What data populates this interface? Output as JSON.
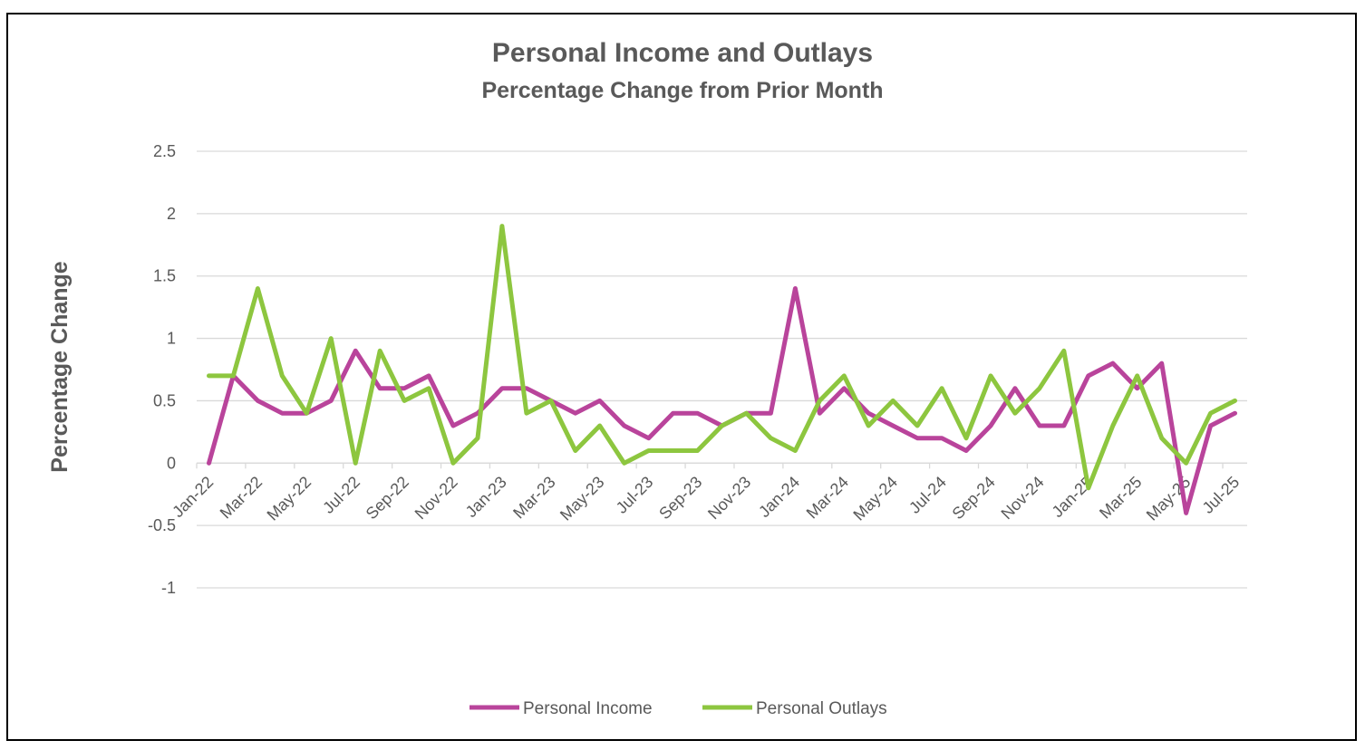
{
  "chart_data": {
    "type": "line",
    "title": "Personal Income and Outlays",
    "subtitle": "Percentage Change from Prior Month",
    "ylabel": "Percentage Change",
    "xlabel": "",
    "ylim": [
      -1,
      2.5
    ],
    "yticks": [
      "2.5",
      "2",
      "1.5",
      "1",
      "0.5",
      "0",
      "-0.5",
      "-1"
    ],
    "ytick_values": [
      2.5,
      2,
      1.5,
      1,
      0.5,
      0,
      -0.5,
      -1
    ],
    "grid": true,
    "legend_position": "bottom",
    "x": [
      "Jan-22",
      "Feb-22",
      "Mar-22",
      "Apr-22",
      "May-22",
      "Jun-22",
      "Jul-22",
      "Aug-22",
      "Sep-22",
      "Oct-22",
      "Nov-22",
      "Dec-22",
      "Jan-23",
      "Feb-23",
      "Mar-23",
      "Apr-23",
      "May-23",
      "Jun-23",
      "Jul-23",
      "Aug-23",
      "Sep-23",
      "Oct-23",
      "Nov-23",
      "Dec-23",
      "Jan-24",
      "Feb-24",
      "Mar-24",
      "Apr-24",
      "May-24",
      "Jun-24",
      "Jul-24",
      "Aug-24",
      "Sep-24",
      "Oct-24",
      "Nov-24",
      "Dec-24",
      "Jan-25",
      "Feb-25",
      "Mar-25",
      "Apr-25",
      "May-25",
      "Jun-25",
      "Jul-25"
    ],
    "xtick_labels": [
      "Jan-22",
      "Mar-22",
      "May-22",
      "Jul-22",
      "Sep-22",
      "Nov-22",
      "Jan-23",
      "Mar-23",
      "May-23",
      "Jul-23",
      "Sep-23",
      "Nov-23",
      "Jan-24",
      "Mar-24",
      "May-24",
      "Jul-24",
      "Sep-24",
      "Nov-24",
      "Jan-25",
      "Mar-25",
      "May-25",
      "Jul-25"
    ],
    "series": [
      {
        "name": "Personal Income",
        "color": "#B9449B",
        "values": [
          0,
          0.7,
          0.5,
          0.4,
          0.4,
          0.5,
          0.9,
          0.6,
          0.6,
          0.7,
          0.3,
          0.4,
          0.6,
          0.6,
          0.5,
          0.4,
          0.5,
          0.3,
          0.2,
          0.4,
          0.4,
          0.3,
          0.4,
          0.4,
          1.4,
          0.4,
          0.6,
          0.4,
          0.3,
          0.2,
          0.2,
          0.1,
          0.3,
          0.6,
          0.3,
          0.3,
          0.7,
          0.8,
          0.6,
          0.8,
          -0.4,
          0.3,
          0.4
        ]
      },
      {
        "name": "Personal Outlays",
        "color": "#8DC63F",
        "values": [
          0.7,
          0.7,
          1.4,
          0.7,
          0.4,
          1.0,
          0,
          0.9,
          0.5,
          0.6,
          0,
          0.2,
          1.9,
          0.4,
          0.5,
          0.1,
          0.3,
          0,
          0.1,
          0.1,
          0.1,
          0.3,
          0.4,
          0.2,
          0.1,
          0.5,
          0.7,
          0.3,
          0.5,
          0.3,
          0.6,
          0.2,
          0.7,
          0.4,
          0.6,
          0.9,
          -0.2,
          0.3,
          0.7,
          0.2,
          0,
          0.4,
          0.5
        ]
      }
    ]
  }
}
